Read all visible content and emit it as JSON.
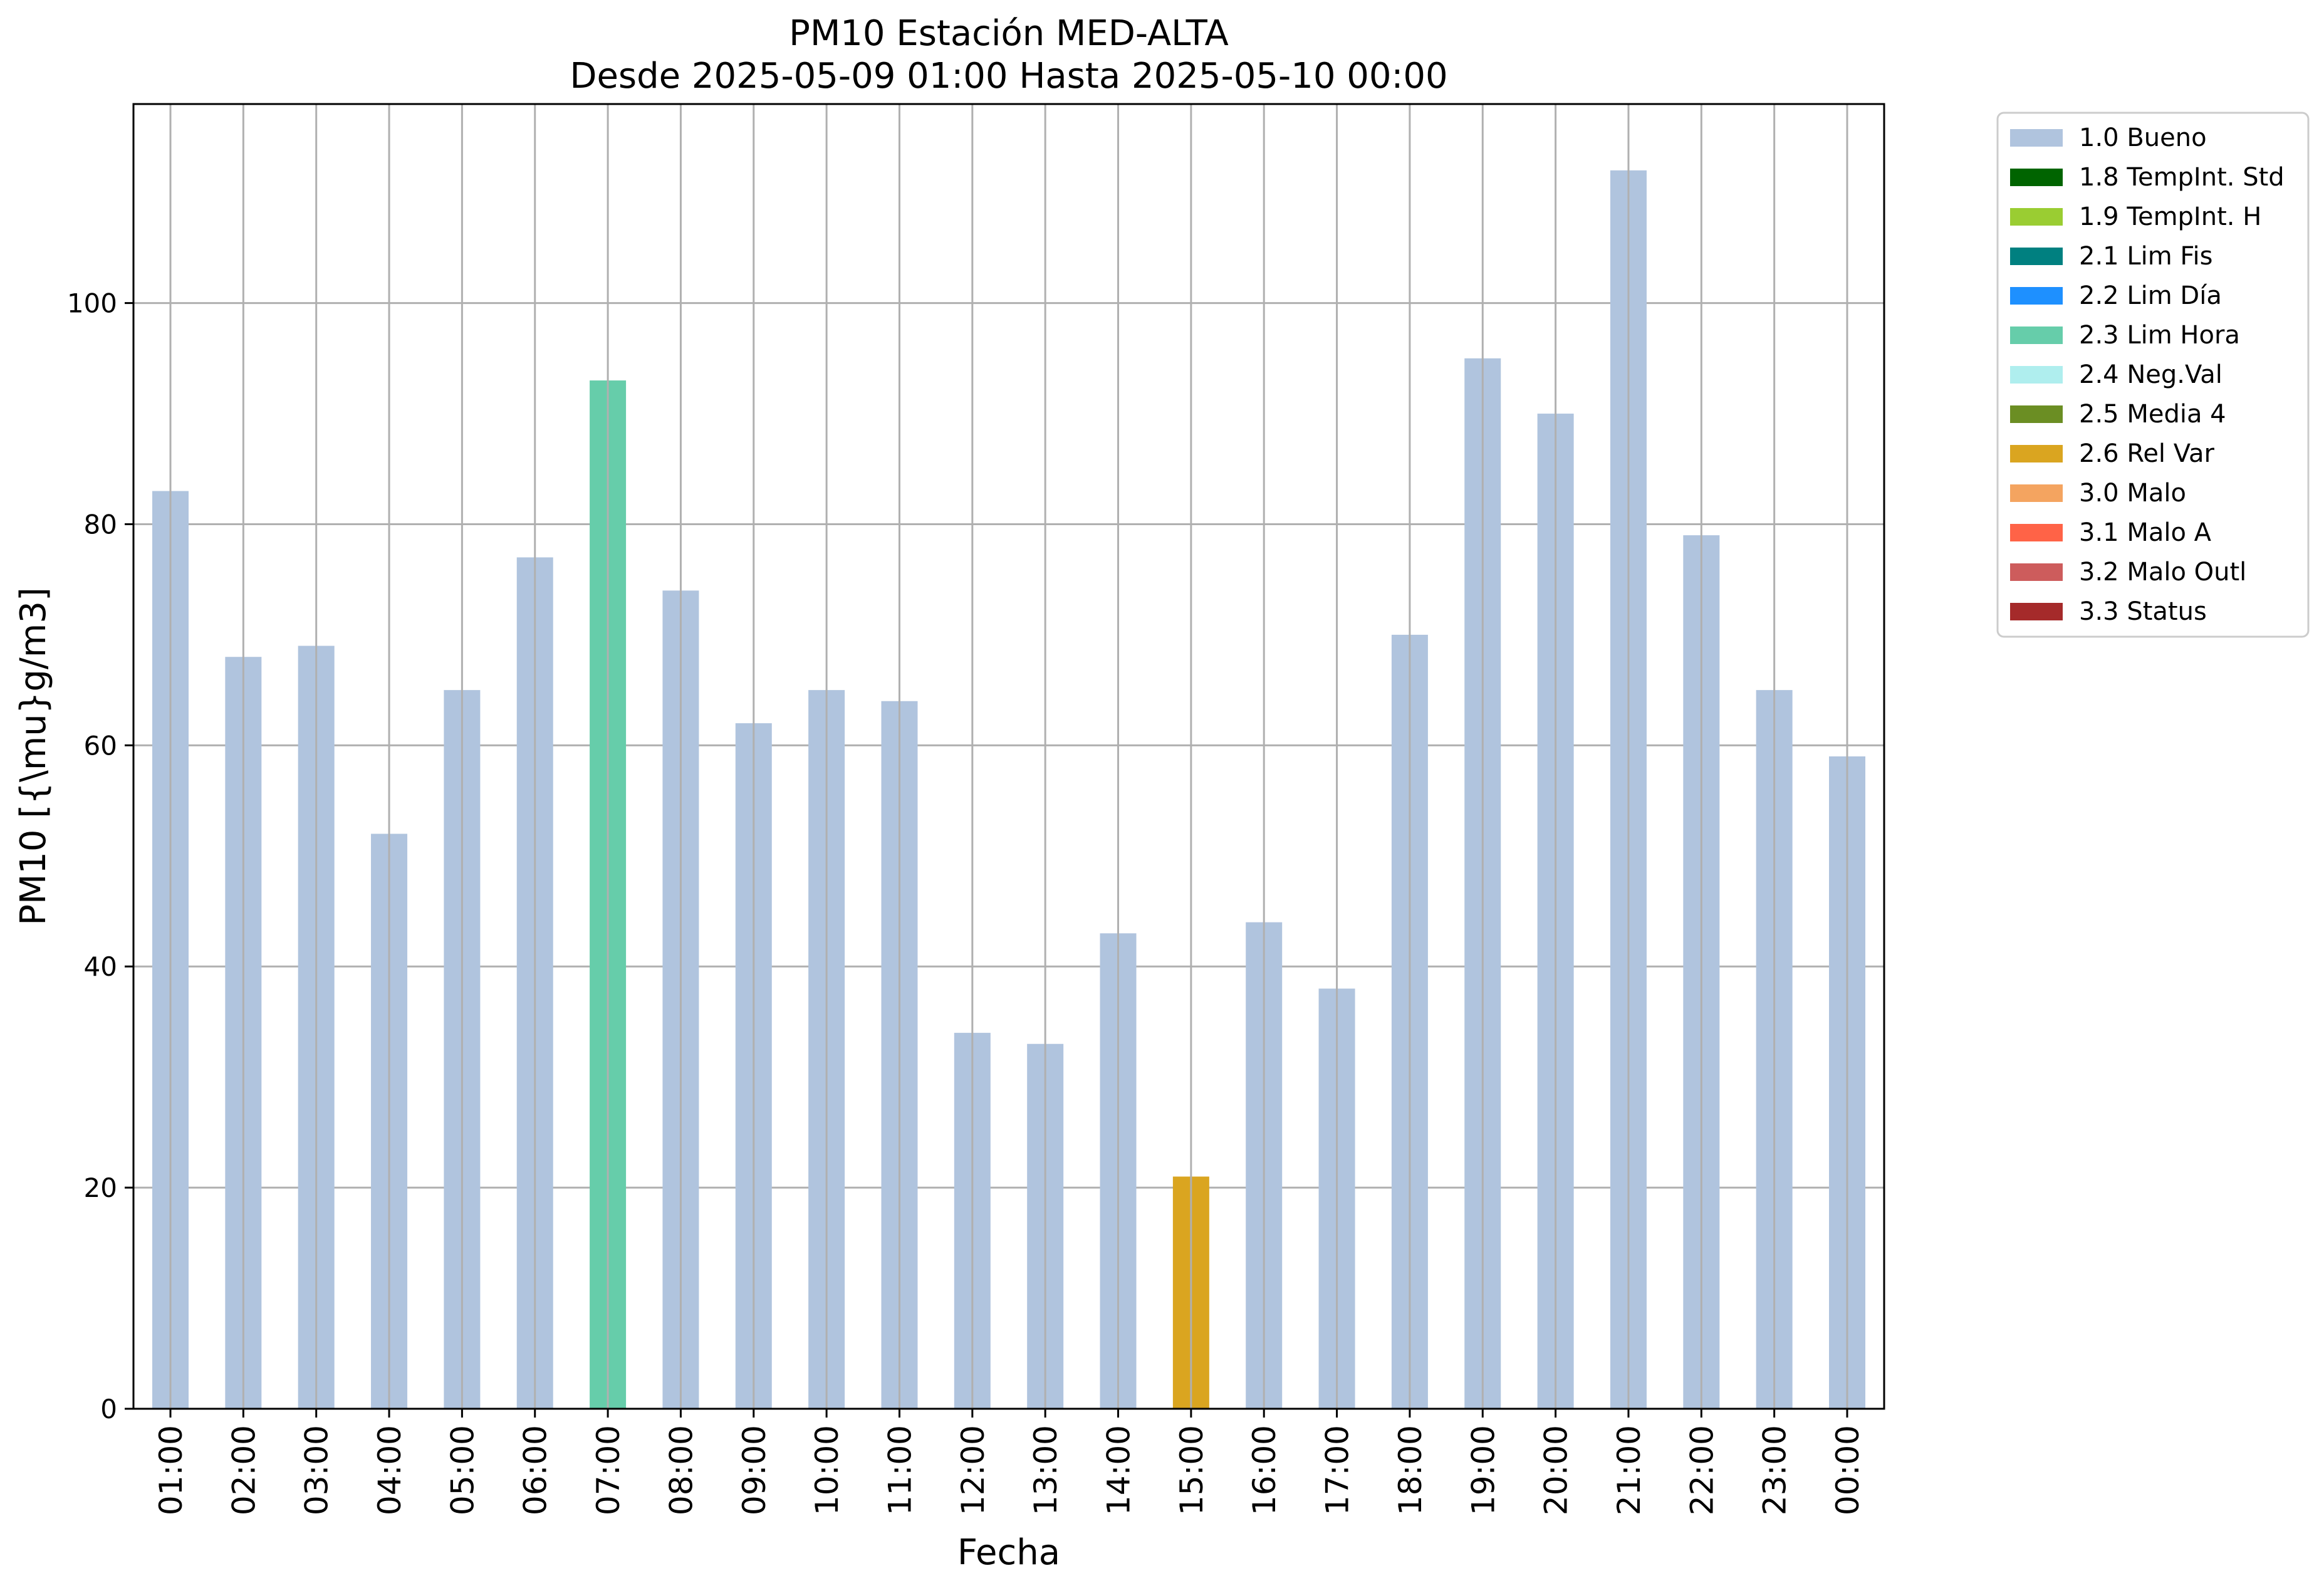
{
  "chart_data": {
    "type": "bar",
    "title": "PM10 Estación MED-ALTA",
    "subtitle": "Desde 2025-05-09 01:00 Hasta 2025-05-10 00:00",
    "xlabel": "Fecha",
    "ylabel": "PM10 [{\\mu}g/m3]",
    "ylim": [
      0,
      118
    ],
    "yticks": [
      0,
      20,
      40,
      60,
      80,
      100
    ],
    "grid": true,
    "legend_position": "outside-top-right",
    "categories": [
      "01:00",
      "02:00",
      "03:00",
      "04:00",
      "05:00",
      "06:00",
      "07:00",
      "08:00",
      "09:00",
      "10:00",
      "11:00",
      "12:00",
      "13:00",
      "14:00",
      "15:00",
      "16:00",
      "17:00",
      "18:00",
      "19:00",
      "20:00",
      "21:00",
      "22:00",
      "23:00",
      "00:00"
    ],
    "values": [
      83,
      68,
      69,
      52,
      65,
      77,
      93,
      74,
      62,
      65,
      64,
      34,
      33,
      43,
      21,
      44,
      38,
      70,
      95,
      90,
      112,
      79,
      65,
      59
    ],
    "bar_flags": [
      "1.0 Bueno",
      "1.0 Bueno",
      "1.0 Bueno",
      "1.0 Bueno",
      "1.0 Bueno",
      "1.0 Bueno",
      "2.3 Lim Hora",
      "1.0 Bueno",
      "1.0 Bueno",
      "1.0 Bueno",
      "1.0 Bueno",
      "1.0 Bueno",
      "1.0 Bueno",
      "1.0 Bueno",
      "2.6 Rel Var",
      "1.0 Bueno",
      "1.0 Bueno",
      "1.0 Bueno",
      "1.0 Bueno",
      "1.0 Bueno",
      "1.0 Bueno",
      "1.0 Bueno",
      "1.0 Bueno",
      "1.0 Bueno"
    ],
    "legend": [
      {
        "label": "1.0 Bueno",
        "color": "#b0c4de"
      },
      {
        "label": "1.8 TempInt. Std",
        "color": "#006400"
      },
      {
        "label": "1.9 TempInt. H",
        "color": "#9acd32"
      },
      {
        "label": "2.1 Lim Fis",
        "color": "#008080"
      },
      {
        "label": "2.2 Lim Día",
        "color": "#1e90ff"
      },
      {
        "label": "2.3 Lim Hora",
        "color": "#66cdaa"
      },
      {
        "label": "2.4 Neg.Val",
        "color": "#afeeee"
      },
      {
        "label": "2.5 Media 4",
        "color": "#6b8e23"
      },
      {
        "label": "2.6 Rel Var",
        "color": "#daa520"
      },
      {
        "label": "3.0 Malo",
        "color": "#f4a460"
      },
      {
        "label": "3.1 Malo A",
        "color": "#ff6347"
      },
      {
        "label": "3.2 Malo Outl",
        "color": "#cd5c5c"
      },
      {
        "label": "3.3 Status",
        "color": "#a52a2a"
      }
    ]
  }
}
